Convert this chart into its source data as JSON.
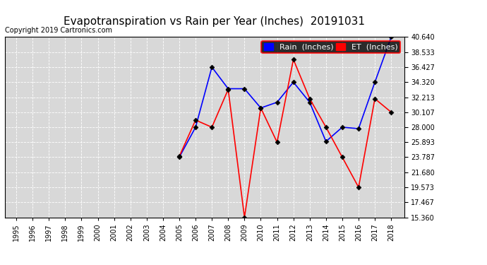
{
  "title": "Evapotranspiration vs Rain per Year (Inches)  20191031",
  "copyright": "Copyright 2019 Cartronics.com",
  "years": [
    1995,
    1996,
    1997,
    1998,
    1999,
    2000,
    2001,
    2002,
    2003,
    2004,
    2005,
    2006,
    2007,
    2008,
    2009,
    2010,
    2011,
    2012,
    2013,
    2014,
    2015,
    2016,
    2017,
    2018
  ],
  "rain": [
    null,
    null,
    null,
    null,
    null,
    null,
    null,
    null,
    null,
    null,
    23.787,
    28.0,
    36.427,
    33.4,
    33.4,
    30.7,
    31.5,
    34.32,
    31.5,
    26.0,
    28.0,
    27.8,
    34.32,
    40.64
  ],
  "et": [
    null,
    null,
    null,
    null,
    null,
    null,
    null,
    null,
    null,
    null,
    23.9,
    29.0,
    28.0,
    33.3,
    15.36,
    30.7,
    25.893,
    37.5,
    32.0,
    28.0,
    23.787,
    19.573,
    32.0,
    30.107
  ],
  "ylim_min": 15.36,
  "ylim_max": 40.64,
  "yticks": [
    15.36,
    17.467,
    19.573,
    21.68,
    23.787,
    25.893,
    28.0,
    30.107,
    32.213,
    34.32,
    36.427,
    38.533,
    40.64
  ],
  "rain_color": "blue",
  "et_color": "red",
  "plot_bg_color": "#d8d8d8",
  "fig_bg_color": "white",
  "title_fontsize": 11,
  "copyright_fontsize": 7,
  "tick_fontsize": 7,
  "legend_fontsize": 8
}
